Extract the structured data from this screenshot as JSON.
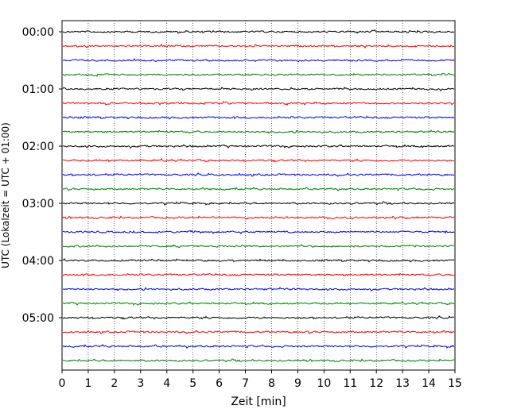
{
  "chart_data": {
    "type": "line",
    "title": "",
    "xlabel": "Zeit  [min]",
    "ylabel": "UTC (Lokalzeit = UTC + 01:00)",
    "xlim": [
      0,
      15
    ],
    "x_ticks": [
      "0",
      "1",
      "2",
      "3",
      "4",
      "5",
      "6",
      "7",
      "8",
      "9",
      "10",
      "11",
      "12",
      "13",
      "14",
      "15"
    ],
    "y_tick_labels": [
      "00:00",
      "01:00",
      "02:00",
      "03:00",
      "04:00",
      "05:00"
    ],
    "grid": "vertical-dotted",
    "trace_interval_minutes": 15,
    "trace_start_times": [
      "00:00",
      "00:15",
      "00:30",
      "00:45",
      "01:00",
      "01:15",
      "01:30",
      "01:45",
      "02:00",
      "02:15",
      "02:30",
      "02:45",
      "03:00",
      "03:15",
      "03:30",
      "03:45",
      "04:00",
      "04:15",
      "04:30",
      "04:45",
      "05:00",
      "05:15",
      "05:30",
      "05:45"
    ],
    "trace_colors": [
      "#000000",
      "#ff0000",
      "#0000ff",
      "#008000"
    ]
  }
}
